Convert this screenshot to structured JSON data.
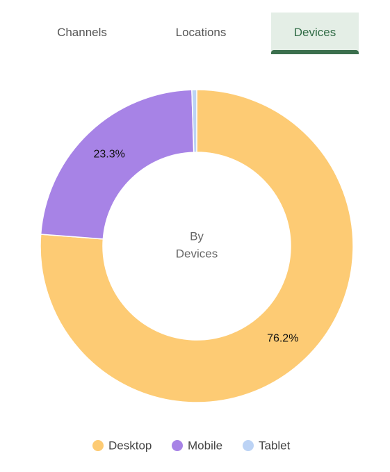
{
  "tabs": [
    "Channels",
    "Locations",
    "Devices"
  ],
  "active_tab": 2,
  "chart_data": {
    "type": "pie",
    "center_label": [
      "By",
      "Devices"
    ],
    "categories": [
      "Desktop",
      "Mobile",
      "Tablet"
    ],
    "values": [
      76.2,
      23.3,
      0.5
    ],
    "value_labels": [
      "76.2%",
      "23.3%",
      null
    ],
    "colors": [
      "#fdcb74",
      "#a783e6",
      "#bcd3f5"
    ],
    "legend": "bottom"
  }
}
